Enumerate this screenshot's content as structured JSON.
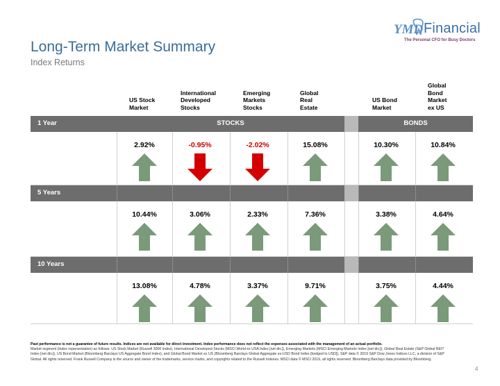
{
  "logo": {
    "text": "Financial",
    "mark_text": "YMD",
    "tagline": "The Personal CFO for Busy Doctors",
    "tooth_color": "#5b8fc7",
    "text_color": "#3b6fa6",
    "tagline_color": "#7a3b6d"
  },
  "header": {
    "title": "Long-Term Market Summary",
    "subtitle": "Index Returns"
  },
  "columns": [
    {
      "label": "US Stock\nMarket"
    },
    {
      "label": "International\nDeveloped\nStocks"
    },
    {
      "label": "Emerging\nMarkets\nStocks"
    },
    {
      "label": "Global\nReal\nEstate"
    },
    {
      "label": "US Bond\nMarket"
    },
    {
      "label": "Global\nBond\nMarket\nex US"
    }
  ],
  "sections": {
    "stocks": "STOCKS",
    "bonds": "BONDS"
  },
  "periods": [
    {
      "label": "1 Year",
      "returns": [
        {
          "value": "2.92%",
          "direction": "up"
        },
        {
          "value": "-0.95%",
          "direction": "down"
        },
        {
          "value": "-2.02%",
          "direction": "down"
        },
        {
          "value": "15.08%",
          "direction": "up"
        },
        {
          "value": "10.30%",
          "direction": "up"
        },
        {
          "value": "10.84%",
          "direction": "up"
        }
      ]
    },
    {
      "label": "5 Years",
      "returns": [
        {
          "value": "10.44%",
          "direction": "up"
        },
        {
          "value": "3.06%",
          "direction": "up"
        },
        {
          "value": "2.33%",
          "direction": "up"
        },
        {
          "value": "7.36%",
          "direction": "up"
        },
        {
          "value": "3.38%",
          "direction": "up"
        },
        {
          "value": "4.64%",
          "direction": "up"
        }
      ]
    },
    {
      "label": "10 Years",
      "returns": [
        {
          "value": "13.08%",
          "direction": "up"
        },
        {
          "value": "4.78%",
          "direction": "up"
        },
        {
          "value": "3.37%",
          "direction": "up"
        },
        {
          "value": "9.71%",
          "direction": "up"
        },
        {
          "value": "3.75%",
          "direction": "up"
        },
        {
          "value": "4.44%",
          "direction": "up"
        }
      ]
    }
  ],
  "colors": {
    "up_arrow": "#7a9a7a",
    "down_arrow": "#d40000",
    "negative_text": "#cc0000",
    "bar": "#6d6d6d",
    "title": "#3a6d98"
  },
  "footnote": {
    "bold": "Past performance is not a guarantee of future results. Indices are not available for direct investment. Index performance does not reflect the expenses associated with the management of an actual portfolio.",
    "text": "Market segment (index representation) as follows: US Stock Market (Russell 3000 Index), International Developed Stocks (MSCI World ex USA Index [net div.]), Emerging Markets (MSCI Emerging Markets Index [net div.]), Global Real Estate (S&P Global REIT Index [net div.]), US Bond Market (Bloomberg Barclays US Aggregate Bond Index), and Global Bond Market ex US (Bloomberg Barclays Global Aggregate ex-USD Bond Index [hedged to USD]). S&P data © 2019 S&P Dow Jones Indices LLC, a division of S&P Global. All rights reserved. Frank Russell Company is the source and owner of the trademarks, service marks, and copyrights related to the Russell Indexes. MSCI data © MSCI 2019, all rights reserved. Bloomberg Barclays data provided by Bloomberg."
  },
  "page_number": "4"
}
